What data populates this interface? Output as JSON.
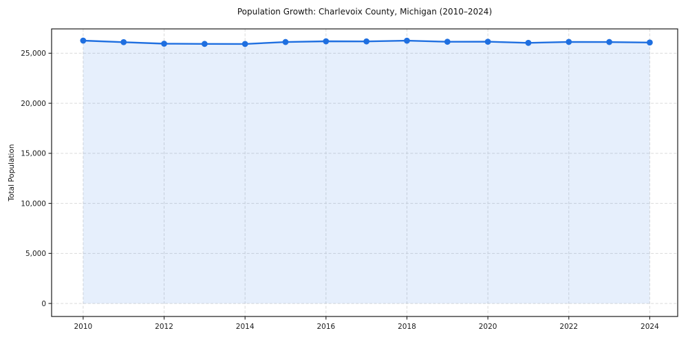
{
  "chart_data": {
    "type": "line",
    "title": "Population Growth: Charlevoix County, Michigan (2010–2024)",
    "xlabel": "",
    "ylabel": "Total Population",
    "x": [
      2010,
      2011,
      2012,
      2013,
      2014,
      2015,
      2016,
      2017,
      2018,
      2019,
      2020,
      2021,
      2022,
      2023,
      2024
    ],
    "values": [
      26260,
      26105,
      25950,
      25930,
      25925,
      26120,
      26190,
      26180,
      26255,
      26145,
      26150,
      26035,
      26130,
      26120,
      26070
    ],
    "series_name": "Total Population",
    "xticks": [
      2010,
      2012,
      2014,
      2016,
      2018,
      2020,
      2022,
      2024
    ],
    "xtick_labels": [
      "2010",
      "2012",
      "2014",
      "2016",
      "2018",
      "2020",
      "2022",
      "2024"
    ],
    "yticks": [
      0,
      5000,
      10000,
      15000,
      20000,
      25000
    ],
    "ytick_labels": [
      "0",
      "5,000",
      "10,000",
      "15,000",
      "20,000",
      "25,000"
    ],
    "xlim": [
      2009.22,
      2024.69
    ],
    "ylim": [
      -1300,
      27430
    ],
    "grid": true,
    "legend": "none",
    "area_baseline": 0,
    "line_color": "#1f6fe0",
    "fill_color": "rgba(31,111,224,0.11)",
    "grid_color": "#d9d9d9",
    "spine_color": "#1a1a1a",
    "background_color": "#ffffff",
    "marker": "circle"
  }
}
